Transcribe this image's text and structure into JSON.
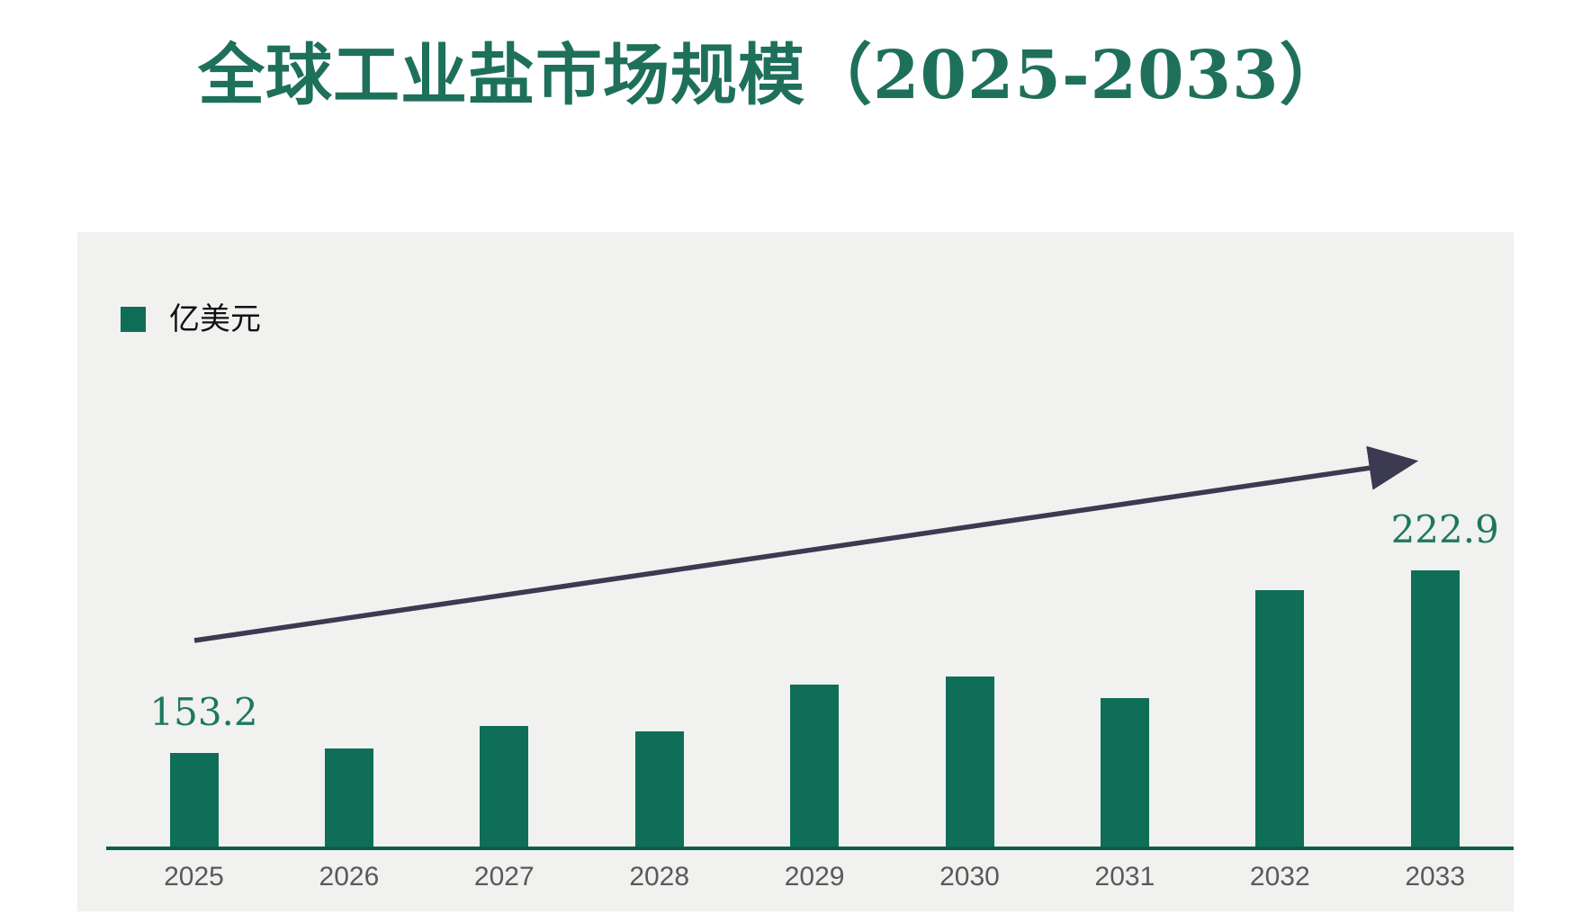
{
  "title": {
    "text": "全球工业盐市场规模（2025-2033）"
  },
  "legend": {
    "label": "亿美元",
    "swatch_color": "#0f6e58"
  },
  "chart_data": {
    "type": "bar",
    "title": "全球工业盐市场规模（2025-2033）",
    "unit_label": "亿美元",
    "categories": [
      "2025",
      "2026",
      "2027",
      "2028",
      "2029",
      "2030",
      "2031",
      "2032",
      "2033"
    ],
    "values": [
      153.2,
      155.1,
      163.7,
      161.4,
      179.4,
      182.5,
      174.2,
      215.5,
      222.9
    ],
    "value_labels_shown": [
      "153.2",
      "",
      "",
      "",
      "",
      "",
      "",
      "",
      "222.9"
    ],
    "labeled_points": {
      "2025": "153.2",
      "2033": "222.9"
    },
    "estimated_note": "only 2025 and 2033 carry printed data labels; other values estimated from bar heights",
    "ylim": [
      116.9,
      240
    ],
    "grid": false,
    "legend_position": "top-left",
    "bar_color": "#0f6e58",
    "axis_line_color": "#07604d",
    "plot_background": "#f1f1f0",
    "value_label_color": "#1d7760",
    "tick_label_color": "#595959",
    "title_color": "#1e705b",
    "trend_arrow": {
      "present": true,
      "direction": "up-right",
      "color": "#3b3a50"
    }
  }
}
